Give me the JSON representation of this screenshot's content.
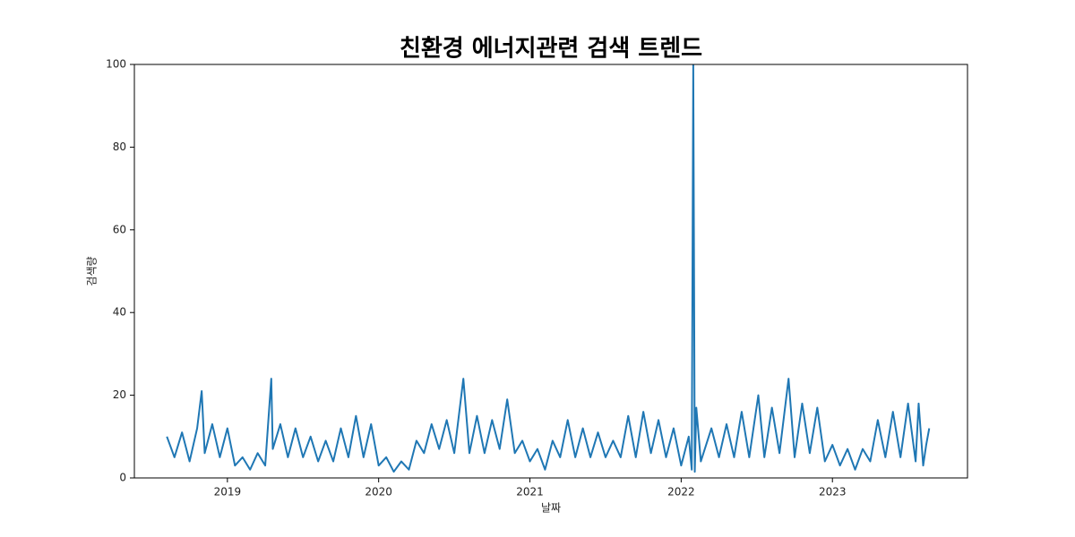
{
  "chart_data": {
    "type": "line",
    "title": "친환경 에너지관련 검색 트렌드",
    "xlabel": "날짜",
    "ylabel": "검색량",
    "color": "#1f77b4",
    "x": [
      2018.6,
      2018.65,
      2018.7,
      2018.75,
      2018.8,
      2018.83,
      2018.85,
      2018.9,
      2018.95,
      2019.0,
      2019.05,
      2019.1,
      2019.15,
      2019.2,
      2019.25,
      2019.29,
      2019.3,
      2019.35,
      2019.4,
      2019.45,
      2019.5,
      2019.55,
      2019.6,
      2019.65,
      2019.7,
      2019.75,
      2019.8,
      2019.85,
      2019.9,
      2019.95,
      2020.0,
      2020.05,
      2020.1,
      2020.15,
      2020.2,
      2020.25,
      2020.3,
      2020.35,
      2020.4,
      2020.45,
      2020.5,
      2020.56,
      2020.6,
      2020.65,
      2020.7,
      2020.75,
      2020.8,
      2020.85,
      2020.9,
      2020.95,
      2021.0,
      2021.05,
      2021.1,
      2021.15,
      2021.2,
      2021.25,
      2021.3,
      2021.35,
      2021.4,
      2021.45,
      2021.5,
      2021.55,
      2021.6,
      2021.65,
      2021.7,
      2021.75,
      2021.8,
      2021.85,
      2021.9,
      2021.95,
      2022.0,
      2022.05,
      2022.07,
      2022.08,
      2022.09,
      2022.1,
      2022.13,
      2022.2,
      2022.25,
      2022.3,
      2022.35,
      2022.4,
      2022.45,
      2022.51,
      2022.55,
      2022.6,
      2022.65,
      2022.71,
      2022.75,
      2022.8,
      2022.85,
      2022.9,
      2022.95,
      2023.0,
      2023.05,
      2023.1,
      2023.15,
      2023.2,
      2023.25,
      2023.3,
      2023.35,
      2023.4,
      2023.45,
      2023.5,
      2023.55,
      2023.57,
      2023.6,
      2023.62,
      2023.64
    ],
    "values": [
      10,
      5,
      11,
      4,
      12,
      21,
      6,
      13,
      5,
      12,
      3,
      5,
      2,
      6,
      3,
      24,
      7,
      13,
      5,
      12,
      5,
      10,
      4,
      9,
      4,
      12,
      5,
      15,
      5,
      13,
      3,
      5,
      1.5,
      4,
      2,
      9,
      6,
      13,
      7,
      14,
      6,
      24,
      6,
      15,
      6,
      14,
      7,
      19,
      6,
      9,
      4,
      7,
      2,
      9,
      5,
      14,
      5,
      12,
      5,
      11,
      5,
      9,
      5,
      15,
      5,
      16,
      6,
      14,
      5,
      12,
      3,
      10,
      2,
      100,
      1.5,
      17,
      4,
      12,
      5,
      13,
      5,
      16,
      5,
      20,
      5,
      17,
      6,
      24,
      5,
      18,
      6,
      17,
      4,
      8,
      3,
      7,
      2,
      7,
      4,
      14,
      5,
      16,
      5,
      18,
      4,
      18,
      3,
      8,
      12
    ],
    "xlim": [
      2018.385,
      2023.893
    ],
    "xticks": [
      2019,
      2020,
      2021,
      2022,
      2023
    ],
    "ylim": [
      0,
      100
    ],
    "yticks": [
      0,
      20,
      40,
      60,
      80,
      100
    ],
    "grid": false
  }
}
